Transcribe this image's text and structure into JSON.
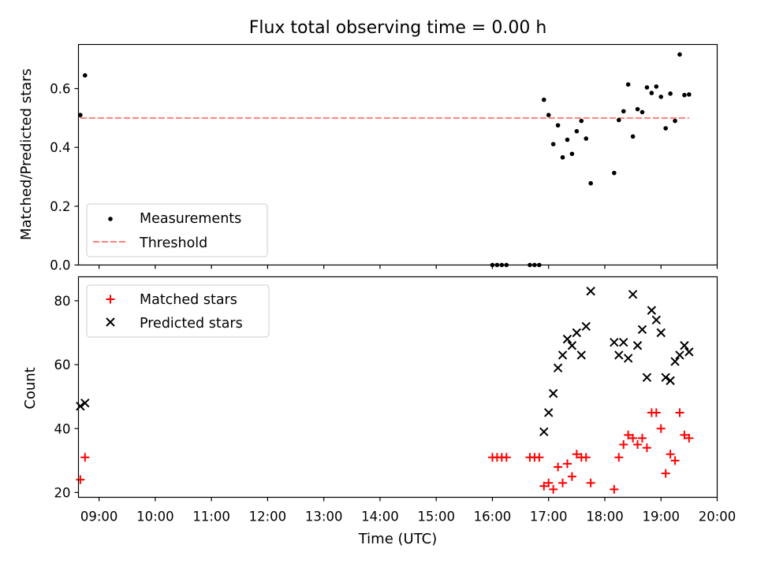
{
  "figure": {
    "title": "Flux total observing time = 0.00 h",
    "xlabel": "Time (UTC)"
  },
  "chart_data": [
    {
      "type": "scatter",
      "ylabel": "Matched/Predicted stars",
      "xlim": [
        "08:38",
        "20:00"
      ],
      "ylim": [
        0,
        0.75
      ],
      "yticks": [
        "0.0",
        "0.2",
        "0.4",
        "0.6"
      ],
      "grid": false,
      "legend_position": "lower-left",
      "series": [
        {
          "name": "Measurements",
          "marker": "dot",
          "color": "#000000",
          "points": [
            {
              "x": "08:40",
              "y": 0.51
            },
            {
              "x": "08:45",
              "y": 0.645
            },
            {
              "x": "16:00",
              "y": 0.0
            },
            {
              "x": "16:05",
              "y": 0.0
            },
            {
              "x": "16:10",
              "y": 0.0
            },
            {
              "x": "16:15",
              "y": 0.0
            },
            {
              "x": "16:40",
              "y": 0.0
            },
            {
              "x": "16:45",
              "y": 0.0
            },
            {
              "x": "16:50",
              "y": 0.0
            },
            {
              "x": "16:55",
              "y": 0.562
            },
            {
              "x": "17:00",
              "y": 0.51
            },
            {
              "x": "17:05",
              "y": 0.411
            },
            {
              "x": "17:10",
              "y": 0.475
            },
            {
              "x": "17:15",
              "y": 0.366
            },
            {
              "x": "17:20",
              "y": 0.426
            },
            {
              "x": "17:25",
              "y": 0.378
            },
            {
              "x": "17:30",
              "y": 0.455
            },
            {
              "x": "17:35",
              "y": 0.49
            },
            {
              "x": "17:40",
              "y": 0.43
            },
            {
              "x": "17:45",
              "y": 0.278
            },
            {
              "x": "18:10",
              "y": 0.313
            },
            {
              "x": "18:15",
              "y": 0.493
            },
            {
              "x": "18:20",
              "y": 0.523
            },
            {
              "x": "18:25",
              "y": 0.614
            },
            {
              "x": "18:30",
              "y": 0.437
            },
            {
              "x": "18:35",
              "y": 0.53
            },
            {
              "x": "18:40",
              "y": 0.52
            },
            {
              "x": "18:45",
              "y": 0.604
            },
            {
              "x": "18:50",
              "y": 0.585
            },
            {
              "x": "18:55",
              "y": 0.607
            },
            {
              "x": "19:00",
              "y": 0.572
            },
            {
              "x": "19:05",
              "y": 0.465
            },
            {
              "x": "19:10",
              "y": 0.583
            },
            {
              "x": "19:15",
              "y": 0.49
            },
            {
              "x": "19:20",
              "y": 0.716
            },
            {
              "x": "19:25",
              "y": 0.578
            },
            {
              "x": "19:30",
              "y": 0.58
            }
          ]
        },
        {
          "name": "Threshold",
          "style": "dashed",
          "color": "#ff7f7f",
          "points": [
            {
              "x": "08:40",
              "y": 0.5
            },
            {
              "x": "19:30",
              "y": 0.5
            }
          ]
        }
      ]
    },
    {
      "type": "scatter",
      "ylabel": "Count",
      "xlim": [
        "08:38",
        "20:00"
      ],
      "ylim": [
        18.5,
        87.5
      ],
      "yticks": [
        "20",
        "40",
        "60",
        "80"
      ],
      "grid": false,
      "legend_position": "upper-left",
      "series": [
        {
          "name": "Matched stars",
          "marker": "plus",
          "color": "#ff0000",
          "points": [
            {
              "x": "08:40",
              "y": 24
            },
            {
              "x": "08:45",
              "y": 31
            },
            {
              "x": "16:00",
              "y": 31
            },
            {
              "x": "16:05",
              "y": 31
            },
            {
              "x": "16:10",
              "y": 31
            },
            {
              "x": "16:15",
              "y": 31
            },
            {
              "x": "16:40",
              "y": 31
            },
            {
              "x": "16:45",
              "y": 31
            },
            {
              "x": "16:50",
              "y": 31
            },
            {
              "x": "16:55",
              "y": 22
            },
            {
              "x": "17:00",
              "y": 23
            },
            {
              "x": "17:05",
              "y": 21
            },
            {
              "x": "17:10",
              "y": 28
            },
            {
              "x": "17:15",
              "y": 23
            },
            {
              "x": "17:20",
              "y": 29
            },
            {
              "x": "17:25",
              "y": 25
            },
            {
              "x": "17:30",
              "y": 32
            },
            {
              "x": "17:35",
              "y": 31
            },
            {
              "x": "17:40",
              "y": 31
            },
            {
              "x": "17:45",
              "y": 23
            },
            {
              "x": "18:10",
              "y": 21
            },
            {
              "x": "18:15",
              "y": 31
            },
            {
              "x": "18:20",
              "y": 35
            },
            {
              "x": "18:25",
              "y": 38
            },
            {
              "x": "18:30",
              "y": 37
            },
            {
              "x": "18:35",
              "y": 35
            },
            {
              "x": "18:40",
              "y": 37
            },
            {
              "x": "18:45",
              "y": 34
            },
            {
              "x": "18:50",
              "y": 45
            },
            {
              "x": "18:55",
              "y": 45
            },
            {
              "x": "19:00",
              "y": 40
            },
            {
              "x": "19:05",
              "y": 26
            },
            {
              "x": "19:10",
              "y": 32
            },
            {
              "x": "19:15",
              "y": 30
            },
            {
              "x": "19:20",
              "y": 45
            },
            {
              "x": "19:25",
              "y": 38
            },
            {
              "x": "19:30",
              "y": 37
            }
          ]
        },
        {
          "name": "Predicted stars",
          "marker": "x",
          "color": "#000000",
          "points": [
            {
              "x": "08:40",
              "y": 47
            },
            {
              "x": "08:45",
              "y": 48
            },
            {
              "x": "16:55",
              "y": 39
            },
            {
              "x": "17:00",
              "y": 45
            },
            {
              "x": "17:05",
              "y": 51
            },
            {
              "x": "17:10",
              "y": 59
            },
            {
              "x": "17:15",
              "y": 63
            },
            {
              "x": "17:20",
              "y": 68
            },
            {
              "x": "17:25",
              "y": 66
            },
            {
              "x": "17:30",
              "y": 70
            },
            {
              "x": "17:35",
              "y": 63
            },
            {
              "x": "17:40",
              "y": 72
            },
            {
              "x": "17:45",
              "y": 83
            },
            {
              "x": "18:10",
              "y": 67
            },
            {
              "x": "18:15",
              "y": 63
            },
            {
              "x": "18:20",
              "y": 67
            },
            {
              "x": "18:25",
              "y": 62
            },
            {
              "x": "18:30",
              "y": 82
            },
            {
              "x": "18:35",
              "y": 66
            },
            {
              "x": "18:40",
              "y": 71
            },
            {
              "x": "18:45",
              "y": 56
            },
            {
              "x": "18:50",
              "y": 77
            },
            {
              "x": "18:55",
              "y": 74
            },
            {
              "x": "19:00",
              "y": 70
            },
            {
              "x": "19:05",
              "y": 56
            },
            {
              "x": "19:10",
              "y": 55
            },
            {
              "x": "19:15",
              "y": 61
            },
            {
              "x": "19:20",
              "y": 63
            },
            {
              "x": "19:25",
              "y": 66
            },
            {
              "x": "19:30",
              "y": 64
            }
          ]
        }
      ]
    }
  ],
  "xticks": [
    "09:00",
    "10:00",
    "11:00",
    "12:00",
    "13:00",
    "14:00",
    "15:00",
    "16:00",
    "17:00",
    "18:00",
    "19:00",
    "20:00"
  ]
}
